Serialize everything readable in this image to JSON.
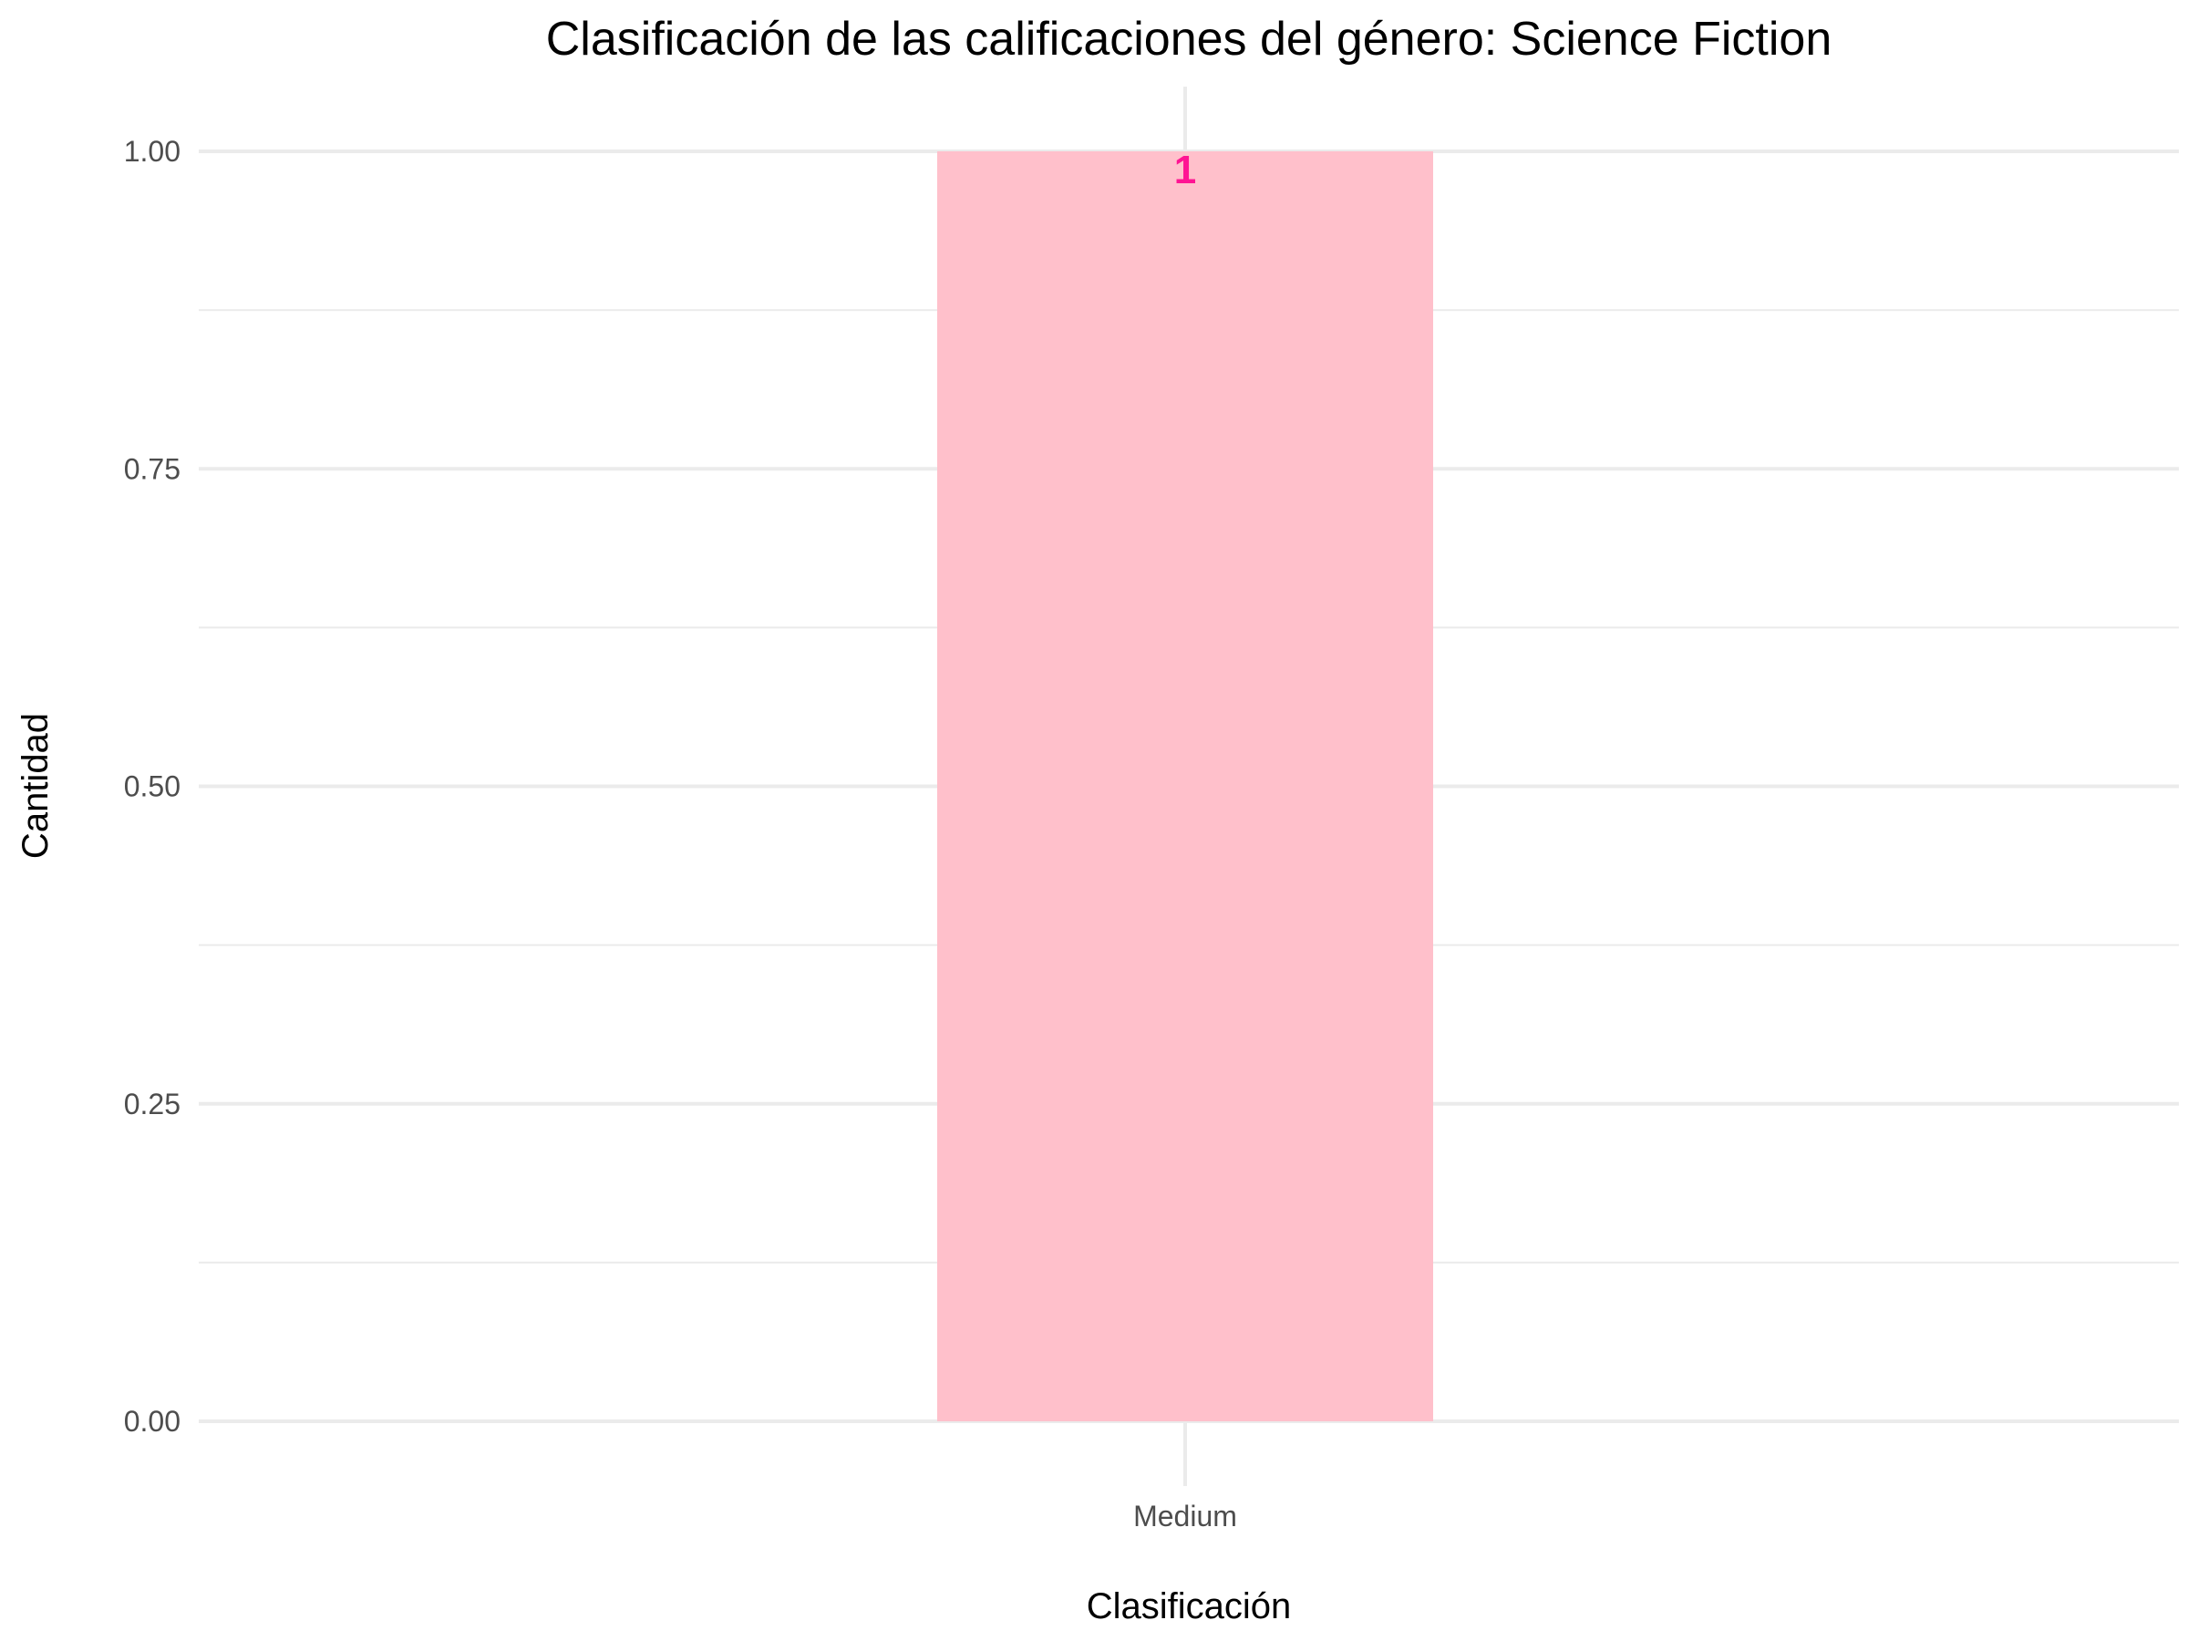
{
  "chart_data": {
    "type": "bar",
    "title": "Clasificación de las calificaciones del género: Science Fiction",
    "xlabel": "Clasificación",
    "ylabel": "Cantidad",
    "categories": [
      "Medium"
    ],
    "values": [
      1
    ],
    "data_labels": [
      "1"
    ],
    "yticks": [
      "0.00",
      "0.25",
      "0.50",
      "0.75",
      "1.00"
    ],
    "ytick_values": [
      0,
      0.25,
      0.5,
      0.75,
      1
    ],
    "ylim": [
      0,
      1.05
    ],
    "grid": true,
    "legend": "none",
    "colors": {
      "bar_fill": "#ffc0cb",
      "label_color": "#ff1493",
      "grid": "#ebebeb"
    }
  }
}
